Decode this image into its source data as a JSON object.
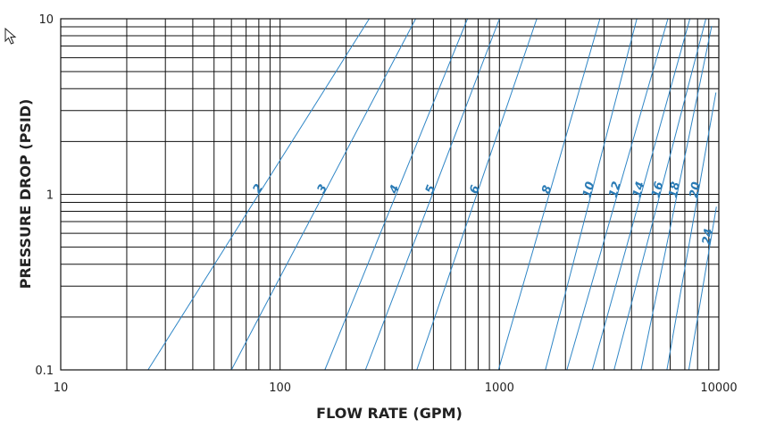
{
  "chart_data": {
    "type": "line",
    "xscale": "log",
    "yscale": "log",
    "xlim": [
      10,
      10000
    ],
    "ylim": [
      0.1,
      10
    ],
    "xlabel": "FLOW RATE (GPM)",
    "ylabel": "PRESSURE DROP (PSID)",
    "xticks": [
      "10",
      "100",
      "1000",
      "10000"
    ],
    "yticks": [
      "0.1",
      "1",
      "10"
    ],
    "grid": true,
    "line_color": "#2f86c6",
    "label_color": "#2a7bb5",
    "series": [
      {
        "name": "2",
        "x": [
          25,
          255
        ],
        "y": [
          0.1,
          10
        ]
      },
      {
        "name": "3",
        "x": [
          60,
          415
        ],
        "y": [
          0.1,
          10
        ]
      },
      {
        "name": "4",
        "x": [
          160,
          715
        ],
        "y": [
          0.1,
          10
        ]
      },
      {
        "name": "5",
        "x": [
          245,
          1000
        ],
        "y": [
          0.1,
          10
        ]
      },
      {
        "name": "6",
        "x": [
          420,
          1480
        ],
        "y": [
          0.1,
          10
        ]
      },
      {
        "name": "8",
        "x": [
          990,
          2870
        ],
        "y": [
          0.1,
          10
        ]
      },
      {
        "name": "10",
        "x": [
          1620,
          4230
        ],
        "y": [
          0.1,
          10
        ]
      },
      {
        "name": "12",
        "x": [
          2030,
          5860
        ],
        "y": [
          0.1,
          10
        ]
      },
      {
        "name": "14",
        "x": [
          2650,
          7380
        ],
        "y": [
          0.1,
          10
        ]
      },
      {
        "name": "16",
        "x": [
          3330,
          8730
        ],
        "y": [
          0.1,
          10
        ]
      },
      {
        "name": "18",
        "x": [
          4420,
          9280
        ],
        "y": [
          0.1,
          9.1
        ]
      },
      {
        "name": "20",
        "x": [
          5800,
          9700
        ],
        "y": [
          0.1,
          3.8
        ]
      },
      {
        "name": "24",
        "x": [
          7300,
          9750
        ],
        "y": [
          0.1,
          0.85
        ]
      }
    ]
  }
}
